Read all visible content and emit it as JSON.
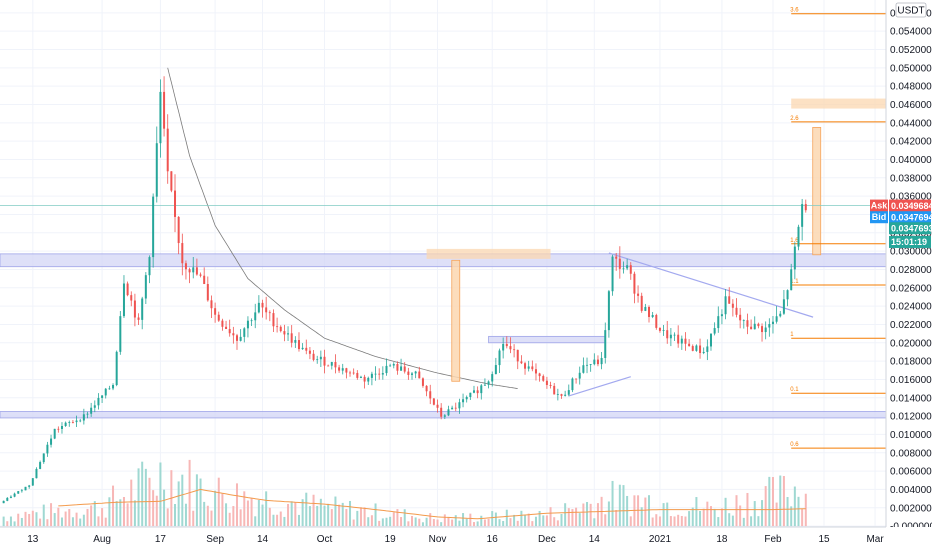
{
  "chart_data": {
    "type": "candlestick",
    "quote_currency": "USDT",
    "y_axis": {
      "scale": "linear",
      "range": [
        -0.0001,
        0.0574
      ],
      "ticks": [
        "0.0560000",
        "0.0540000",
        "0.0520000",
        "0.0500000",
        "0.0480000",
        "0.0460000",
        "0.0440000",
        "0.0420000",
        "0.0400000",
        "0.0380000",
        "0.0360000",
        "0.0340000",
        "0.0320000",
        "0.0300000",
        "0.0280000",
        "0.0260000",
        "0.0240000",
        "0.0220000",
        "0.0200000",
        "0.0180000",
        "0.0160000",
        "0.0140000",
        "0.0120000",
        "0.0100000",
        "0.0080000",
        "0.0060000",
        "0.0040000",
        "0.0020000",
        "-0.0000000"
      ]
    },
    "x_axis": {
      "range": [
        "2020-07-04",
        "2021-03-04"
      ],
      "ticks": [
        {
          "label": "13",
          "date": "2020-07-13"
        },
        {
          "label": "Aug",
          "date": "2020-08-01"
        },
        {
          "label": "17",
          "date": "2020-08-17"
        },
        {
          "label": "Sep",
          "date": "2020-09-01"
        },
        {
          "label": "14",
          "date": "2020-09-14"
        },
        {
          "label": "Oct",
          "date": "2020-10-01"
        },
        {
          "label": "19",
          "date": "2020-10-19"
        },
        {
          "label": "Nov",
          "date": "2020-11-01"
        },
        {
          "label": "16",
          "date": "2020-11-16"
        },
        {
          "label": "Dec",
          "date": "2020-12-01"
        },
        {
          "label": "14",
          "date": "2020-12-14"
        },
        {
          "label": "2021",
          "date": "2021-01-01"
        },
        {
          "label": "18",
          "date": "2021-01-18"
        },
        {
          "label": "Feb",
          "date": "2021-02-01"
        },
        {
          "label": "15",
          "date": "2021-02-15"
        },
        {
          "label": "Mar",
          "date": "2021-03-01"
        }
      ]
    },
    "price_keypoints": [
      [
        "2020-07-05",
        0.0025
      ],
      [
        "2020-07-13",
        0.0045
      ],
      [
        "2020-07-20",
        0.0105
      ],
      [
        "2020-07-28",
        0.012
      ],
      [
        "2020-08-05",
        0.0155
      ],
      [
        "2020-08-08",
        0.027
      ],
      [
        "2020-08-12",
        0.022
      ],
      [
        "2020-08-15",
        0.03
      ],
      [
        "2020-08-18",
        0.047
      ],
      [
        "2020-08-20",
        0.038
      ],
      [
        "2020-08-24",
        0.029
      ],
      [
        "2020-08-29",
        0.027
      ],
      [
        "2020-09-02",
        0.023
      ],
      [
        "2020-09-08",
        0.0205
      ],
      [
        "2020-09-14",
        0.024
      ],
      [
        "2020-09-20",
        0.0215
      ],
      [
        "2020-09-28",
        0.0185
      ],
      [
        "2020-10-05",
        0.0175
      ],
      [
        "2020-10-13",
        0.016
      ],
      [
        "2020-10-20",
        0.0175
      ],
      [
        "2020-10-27",
        0.0165
      ],
      [
        "2020-11-03",
        0.012
      ],
      [
        "2020-11-07",
        0.013
      ],
      [
        "2020-11-12",
        0.0145
      ],
      [
        "2020-11-16",
        0.016
      ],
      [
        "2020-11-20",
        0.02
      ],
      [
        "2020-11-25",
        0.018
      ],
      [
        "2020-11-30",
        0.016
      ],
      [
        "2020-12-06",
        0.014
      ],
      [
        "2020-12-12",
        0.0175
      ],
      [
        "2020-12-17",
        0.018
      ],
      [
        "2020-12-20",
        0.029
      ],
      [
        "2020-12-24",
        0.028
      ],
      [
        "2020-12-28",
        0.024
      ],
      [
        "2021-01-03",
        0.021
      ],
      [
        "2021-01-08",
        0.02
      ],
      [
        "2021-01-14",
        0.019
      ],
      [
        "2021-01-20",
        0.0245
      ],
      [
        "2021-01-25",
        0.022
      ],
      [
        "2021-01-31",
        0.0215
      ],
      [
        "2021-02-04",
        0.023
      ],
      [
        "2021-02-07",
        0.0275
      ],
      [
        "2021-02-10",
        0.035
      ]
    ],
    "volume_keypoints": [
      [
        "2020-07-05",
        0.001
      ],
      [
        "2020-08-01",
        0.002
      ],
      [
        "2020-08-18",
        0.0055
      ],
      [
        "2020-09-01",
        0.0035
      ],
      [
        "2020-10-01",
        0.002
      ],
      [
        "2020-11-01",
        0.0008
      ],
      [
        "2020-12-01",
        0.0012
      ],
      [
        "2020-12-20",
        0.003
      ],
      [
        "2021-01-15",
        0.0018
      ],
      [
        "2021-02-10",
        0.004
      ]
    ],
    "volume_ma_keypoints": [
      [
        "2020-07-20",
        0.0022
      ],
      [
        "2020-08-05",
        0.0026
      ],
      [
        "2020-08-17",
        0.0027
      ],
      [
        "2020-08-28",
        0.004
      ],
      [
        "2020-09-07",
        0.0033
      ],
      [
        "2020-09-15",
        0.0028
      ],
      [
        "2020-10-01",
        0.0024
      ],
      [
        "2020-10-15",
        0.0018
      ],
      [
        "2020-11-01",
        0.001
      ],
      [
        "2020-11-12",
        0.0008
      ],
      [
        "2020-12-01",
        0.0014
      ],
      [
        "2021-01-01",
        0.0018
      ],
      [
        "2021-02-01",
        0.0018
      ],
      [
        "2021-02-10",
        0.0019
      ]
    ],
    "horizontal_zones": [
      {
        "y": [
          0.0283,
          0.0297
        ],
        "x": [
          "2020-07-04",
          "2021-03-04"
        ]
      },
      {
        "y": [
          0.0118,
          0.0125
        ],
        "x": [
          "2020-07-04",
          "2021-03-04"
        ]
      },
      {
        "y": [
          0.02,
          0.0207
        ],
        "x": [
          "2020-11-15",
          "2020-12-17"
        ]
      }
    ],
    "vertical_ranges": [
      {
        "x": "2020-11-06",
        "y": [
          0.0158,
          0.029
        ]
      },
      {
        "x": "2021-02-13",
        "y": [
          0.0296,
          0.0435
        ]
      }
    ],
    "tag_boxes": [
      {
        "x": [
          "2020-10-29",
          "2020-12-02"
        ],
        "y": 0.0297
      },
      {
        "x": [
          "2021-02-06",
          "2021-03-04"
        ],
        "y": 0.0461
      }
    ],
    "trend_lines": [
      {
        "from": [
          "2020-12-18",
          0.0298
        ],
        "to": [
          "2021-02-12",
          0.0228
        ]
      },
      {
        "from": [
          "2020-12-07",
          0.0142
        ],
        "to": [
          "2020-12-24",
          0.0163
        ]
      }
    ],
    "decay_curve": [
      [
        "2020-08-19",
        0.05
      ],
      [
        "2020-08-25",
        0.0404
      ],
      [
        "2020-09-01",
        0.0328
      ],
      [
        "2020-09-10",
        0.027
      ],
      [
        "2020-09-20",
        0.0236
      ],
      [
        "2020-10-01",
        0.0205
      ],
      [
        "2020-10-15",
        0.0185
      ],
      [
        "2020-11-01",
        0.0167
      ],
      [
        "2020-11-15",
        0.0155
      ],
      [
        "2020-11-23",
        0.015
      ]
    ],
    "fib_levels": [
      {
        "label": "3.6",
        "y": 0.0559
      },
      {
        "label": "2.6",
        "y": 0.0441
      },
      {
        "label": "1.6",
        "y": 0.0308
      },
      {
        "label": "1.1",
        "y": 0.0263
      },
      {
        "label": "1",
        "y": 0.0205
      },
      {
        "label": "0.1",
        "y": 0.0145
      },
      {
        "label": "0.6",
        "y": 0.0085
      }
    ],
    "fib_x_range": [
      "2021-02-06",
      "2021-03-04"
    ],
    "reference_line": {
      "y": 0.0349684
    },
    "price_tags": [
      {
        "label": "Ask",
        "value": "0.0349684",
        "y": 0.0349684,
        "color": "#ef5350"
      },
      {
        "label": "Bid",
        "value": "0.0347694",
        "y": 0.0337,
        "color": "#2196f3"
      },
      {
        "label": "",
        "value": "0.0347693",
        "y": 0.0325,
        "color": "#26a69a"
      },
      {
        "label": "",
        "value": "15:01:19",
        "y": 0.031,
        "color": "#26a69a"
      }
    ],
    "colors": {
      "up": "#26a69a",
      "down": "#ef5350",
      "vol_up": "#9fd8d2",
      "vol_down": "#f7b7b6",
      "zone": "#d3d6f5",
      "zone_border": "#9ea4e8",
      "range": "#fbd7b0",
      "range_border": "#f5a35a",
      "fib": "#f57c00",
      "trend": "#a3a9ef",
      "curve": "#7a7a7a",
      "vol_ma": "#f39a4b",
      "grid": "#f0f3fa"
    }
  }
}
